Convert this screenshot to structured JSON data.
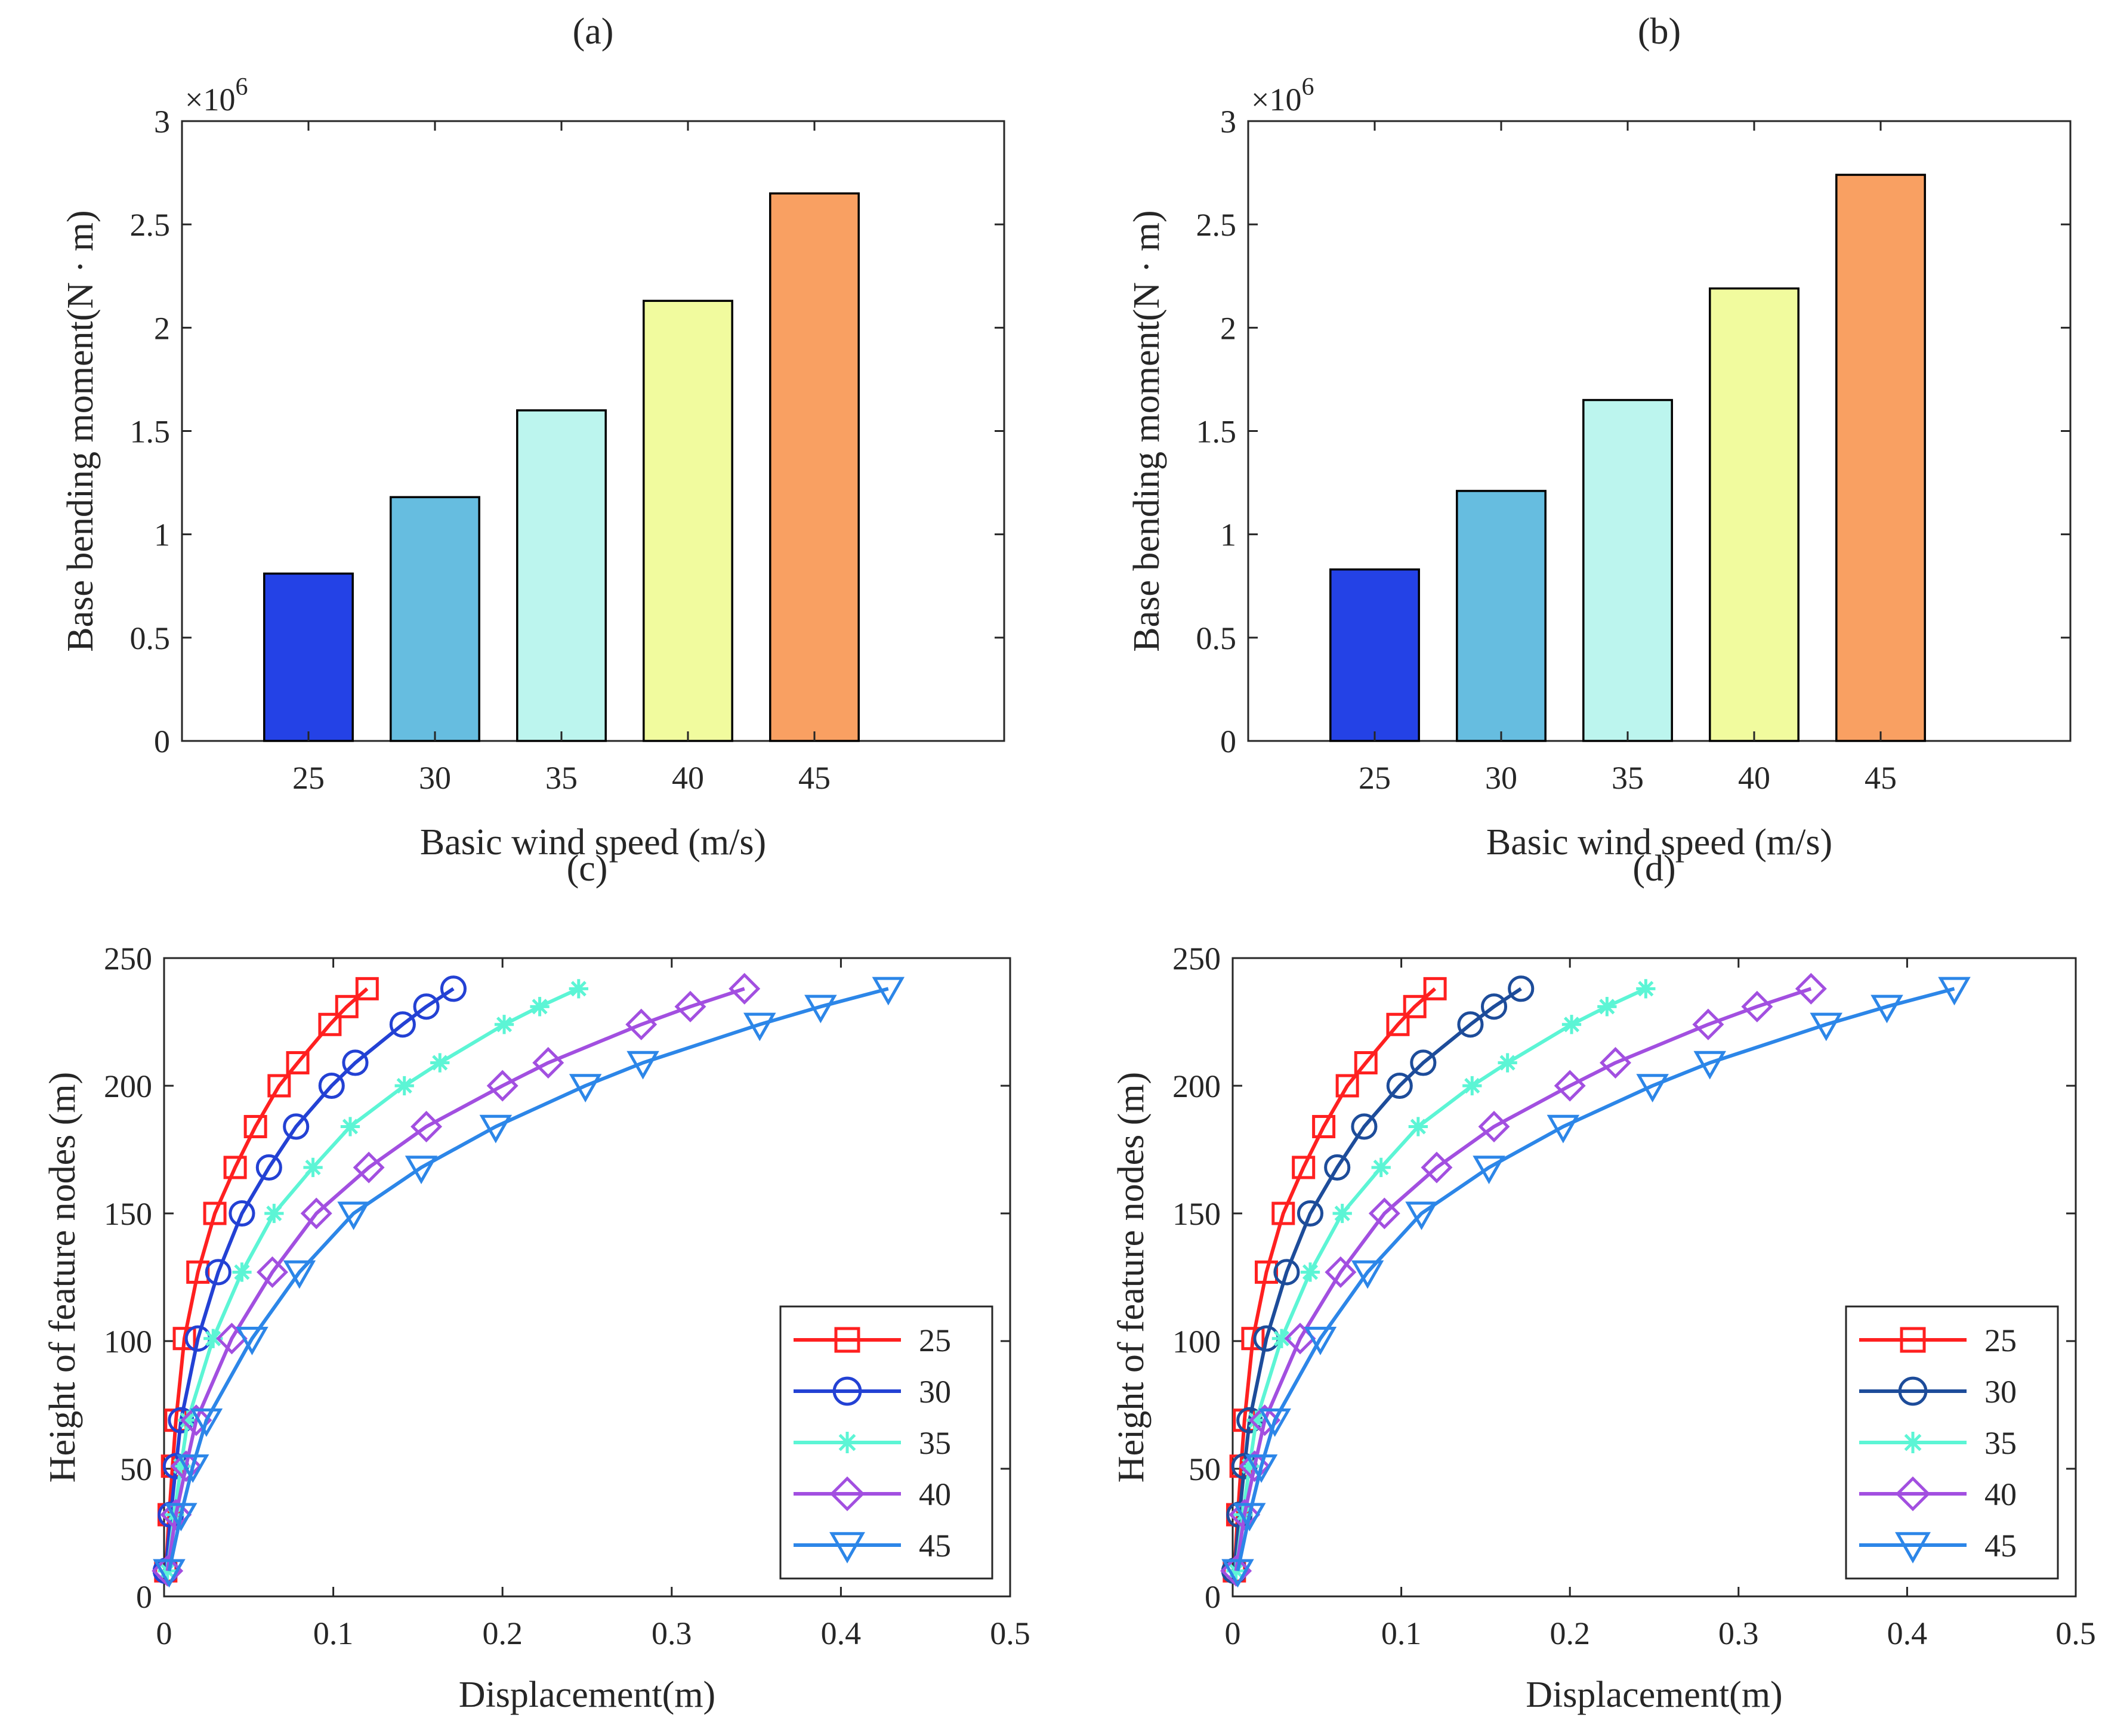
{
  "chart_data": [
    {
      "id": "a",
      "panel_label": "a",
      "type": "bar",
      "title": "(a)",
      "xlabel": "Basic wind speed (m/s)",
      "ylabel": "Base bending moment(N · m)",
      "y_exponent": "×10",
      "y_exponent_power": "6",
      "categories": [
        "25",
        "30",
        "35",
        "40",
        "45"
      ],
      "values": [
        0.81,
        1.18,
        1.6,
        2.13,
        2.65
      ],
      "bar_colors": [
        "#2442E6",
        "#66BDE0",
        "#BCF5EE",
        "#F1FB9E",
        "#F9A062"
      ],
      "xlim": [
        20,
        52.5
      ],
      "ylim": [
        0,
        3
      ],
      "yticks": [
        "0",
        "0.5",
        "1",
        "1.5",
        "2",
        "2.5",
        "3"
      ],
      "grid": false
    },
    {
      "id": "b",
      "panel_label": "b",
      "type": "bar",
      "title": "(b)",
      "xlabel": "Basic wind speed (m/s)",
      "ylabel": "Base bending moment(N · m)",
      "y_exponent": "×10",
      "y_exponent_power": "6",
      "categories": [
        "25",
        "30",
        "35",
        "40",
        "45"
      ],
      "values": [
        0.83,
        1.21,
        1.65,
        2.19,
        2.74
      ],
      "bar_colors": [
        "#2442E6",
        "#66BDE0",
        "#BCF5EE",
        "#F1FB9E",
        "#F9A062"
      ],
      "xlim": [
        20,
        52.5
      ],
      "ylim": [
        0,
        3
      ],
      "yticks": [
        "0",
        "0.5",
        "1",
        "1.5",
        "2",
        "2.5",
        "3"
      ],
      "grid": false
    },
    {
      "id": "c",
      "panel_label": "c",
      "type": "line",
      "title": "(c)",
      "xlabel": "Displacement(m)",
      "ylabel": "Height of feature nodes (m)",
      "xlim": [
        0,
        0.5
      ],
      "ylim": [
        0,
        250
      ],
      "xticks": [
        "0",
        "0.1",
        "0.2",
        "0.3",
        "0.4",
        "0.5"
      ],
      "yticks": [
        "0",
        "50",
        "100",
        "150",
        "200",
        "250"
      ],
      "legend_position": "bottom-right",
      "grid": false,
      "series": [
        {
          "name": "25",
          "color": "#FF2020",
          "marker": "square",
          "x": [
            0.001,
            0.003,
            0.005,
            0.007,
            0.012,
            0.02,
            0.03,
            0.042,
            0.054,
            0.068,
            0.079,
            0.098,
            0.108,
            0.12
          ],
          "y": [
            10,
            32,
            51,
            69,
            101,
            127,
            150,
            168,
            184,
            200,
            209,
            224,
            231,
            238
          ]
        },
        {
          "name": "30",
          "color": "#2341D4",
          "marker": "circle",
          "x": [
            0.001,
            0.004,
            0.007,
            0.01,
            0.02,
            0.032,
            0.046,
            0.062,
            0.078,
            0.099,
            0.113,
            0.141,
            0.155,
            0.171
          ],
          "y": [
            10,
            32,
            51,
            69,
            101,
            127,
            150,
            168,
            184,
            200,
            209,
            224,
            231,
            238
          ]
        },
        {
          "name": "35",
          "color": "#5CF5D5",
          "marker": "asterisk",
          "x": [
            0.002,
            0.006,
            0.01,
            0.014,
            0.029,
            0.046,
            0.065,
            0.088,
            0.11,
            0.142,
            0.163,
            0.201,
            0.222,
            0.245
          ],
          "y": [
            10,
            32,
            51,
            69,
            101,
            127,
            150,
            168,
            184,
            200,
            209,
            224,
            231,
            238
          ]
        },
        {
          "name": "40",
          "color": "#A24FE0",
          "marker": "diamond",
          "x": [
            0.002,
            0.007,
            0.013,
            0.019,
            0.04,
            0.064,
            0.09,
            0.121,
            0.155,
            0.2,
            0.227,
            0.282,
            0.311,
            0.343
          ],
          "y": [
            10,
            32,
            51,
            69,
            101,
            127,
            150,
            168,
            184,
            200,
            209,
            224,
            231,
            238
          ]
        },
        {
          "name": "45",
          "color": "#2C86E8",
          "marker": "triangle-down",
          "x": [
            0.003,
            0.01,
            0.017,
            0.025,
            0.052,
            0.08,
            0.112,
            0.152,
            0.196,
            0.249,
            0.283,
            0.352,
            0.388,
            0.428
          ],
          "y": [
            10,
            32,
            51,
            69,
            101,
            127,
            150,
            168,
            184,
            200,
            209,
            224,
            231,
            238
          ]
        }
      ]
    },
    {
      "id": "d",
      "panel_label": "d",
      "type": "line",
      "title": "(d)",
      "xlabel": "Displacement(m)",
      "ylabel": "Height of feature nodes (m)",
      "xlim": [
        0,
        0.5
      ],
      "ylim": [
        0,
        250
      ],
      "xticks": [
        "0",
        "0.1",
        "0.2",
        "0.3",
        "0.4",
        "0.5"
      ],
      "yticks": [
        "0",
        "50",
        "100",
        "150",
        "200",
        "250"
      ],
      "legend_position": "bottom-right",
      "grid": false,
      "series": [
        {
          "name": "25",
          "color": "#FF2020",
          "marker": "square",
          "x": [
            0.001,
            0.003,
            0.005,
            0.007,
            0.012,
            0.02,
            0.03,
            0.042,
            0.054,
            0.068,
            0.079,
            0.098,
            0.108,
            0.12
          ],
          "y": [
            10,
            32,
            51,
            69,
            101,
            127,
            150,
            168,
            184,
            200,
            209,
            224,
            231,
            238
          ]
        },
        {
          "name": "30",
          "color": "#1D4C9A",
          "marker": "circle",
          "x": [
            0.001,
            0.004,
            0.007,
            0.01,
            0.02,
            0.032,
            0.046,
            0.062,
            0.078,
            0.099,
            0.113,
            0.141,
            0.155,
            0.171
          ],
          "y": [
            10,
            32,
            51,
            69,
            101,
            127,
            150,
            168,
            184,
            200,
            209,
            224,
            231,
            238
          ]
        },
        {
          "name": "35",
          "color": "#5CF5D5",
          "marker": "asterisk",
          "x": [
            0.002,
            0.006,
            0.01,
            0.014,
            0.029,
            0.046,
            0.065,
            0.088,
            0.11,
            0.142,
            0.163,
            0.201,
            0.222,
            0.245
          ],
          "y": [
            10,
            32,
            51,
            69,
            101,
            127,
            150,
            168,
            184,
            200,
            209,
            224,
            231,
            238
          ]
        },
        {
          "name": "40",
          "color": "#A24FE0",
          "marker": "diamond",
          "x": [
            0.002,
            0.007,
            0.013,
            0.019,
            0.04,
            0.064,
            0.09,
            0.121,
            0.155,
            0.2,
            0.227,
            0.282,
            0.311,
            0.343
          ],
          "y": [
            10,
            32,
            51,
            69,
            101,
            127,
            150,
            168,
            184,
            200,
            209,
            224,
            231,
            238
          ]
        },
        {
          "name": "45",
          "color": "#2C86E8",
          "marker": "triangle-down",
          "x": [
            0.003,
            0.01,
            0.017,
            0.025,
            0.052,
            0.08,
            0.112,
            0.152,
            0.196,
            0.249,
            0.283,
            0.352,
            0.388,
            0.428
          ],
          "y": [
            10,
            32,
            51,
            69,
            101,
            127,
            150,
            168,
            184,
            200,
            209,
            224,
            231,
            238
          ]
        }
      ]
    }
  ]
}
